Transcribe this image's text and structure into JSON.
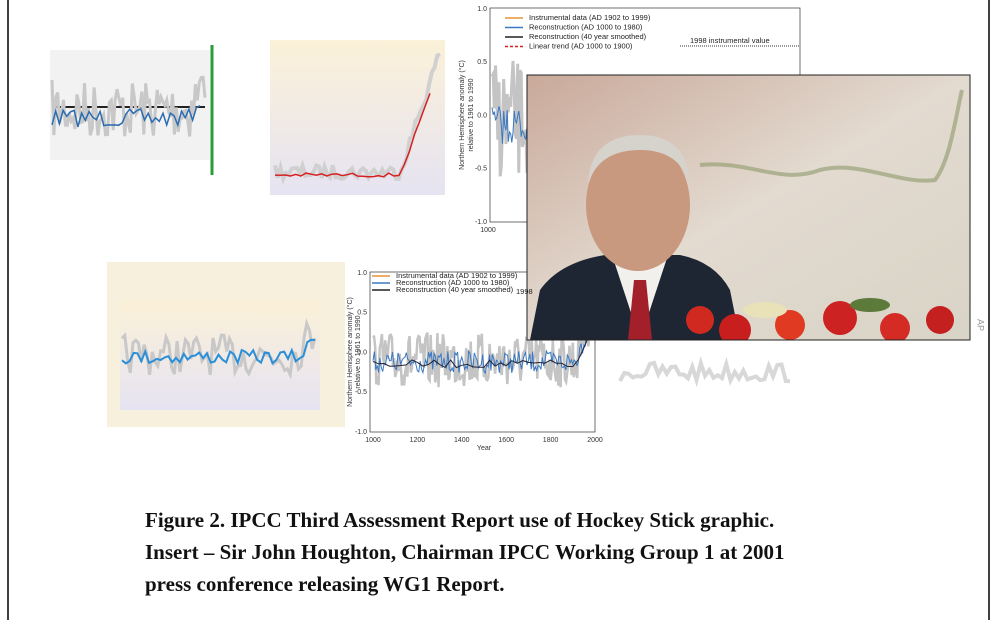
{
  "caption": {
    "lines": [
      "Figure 2. IPCC Third Assessment Report use of Hockey Stick graphic.",
      "Insert – Sir John Houghton, Chairman IPCC Working Group 1 at 2001",
      "press conference releasing WG1 Report."
    ]
  },
  "photo": {
    "credit": "AP"
  },
  "top_chart": {
    "legend": [
      "Instrumental data (AD 1902 to 1999)",
      "Reconstruction (AD 1000 to 1980)",
      "Reconstruction (40 year smoothed)",
      "Linear trend (AD 1000 to 1900)"
    ],
    "annotation": "1998 instrumental value",
    "y_label": "Northern Hemisphere anomaly (°C)",
    "y_label_2": "relative to 1961 to 1990",
    "yticks": [
      "1.0",
      "0.5",
      "0.0",
      "-0.5",
      "-1.0"
    ],
    "xticks": [
      "1000"
    ]
  },
  "center_chart": {
    "legend": [
      "Instrumental data (AD 1902 to 1999)",
      "Reconstruction (AD 1000 to 1980)",
      "Reconstruction (40 year smoothed)"
    ],
    "annotation": "1998",
    "y_label": "Northern Hemisphere anomaly (°C)",
    "y_label_2": "relative to 1961 to 1990",
    "yticks": [
      "1.0",
      "0.5",
      "0.0",
      "-0.5",
      "-1.0"
    ],
    "xticks": [
      "1000",
      "1200",
      "1400",
      "1600",
      "1800",
      "2000"
    ],
    "x_label": "Year"
  }
}
